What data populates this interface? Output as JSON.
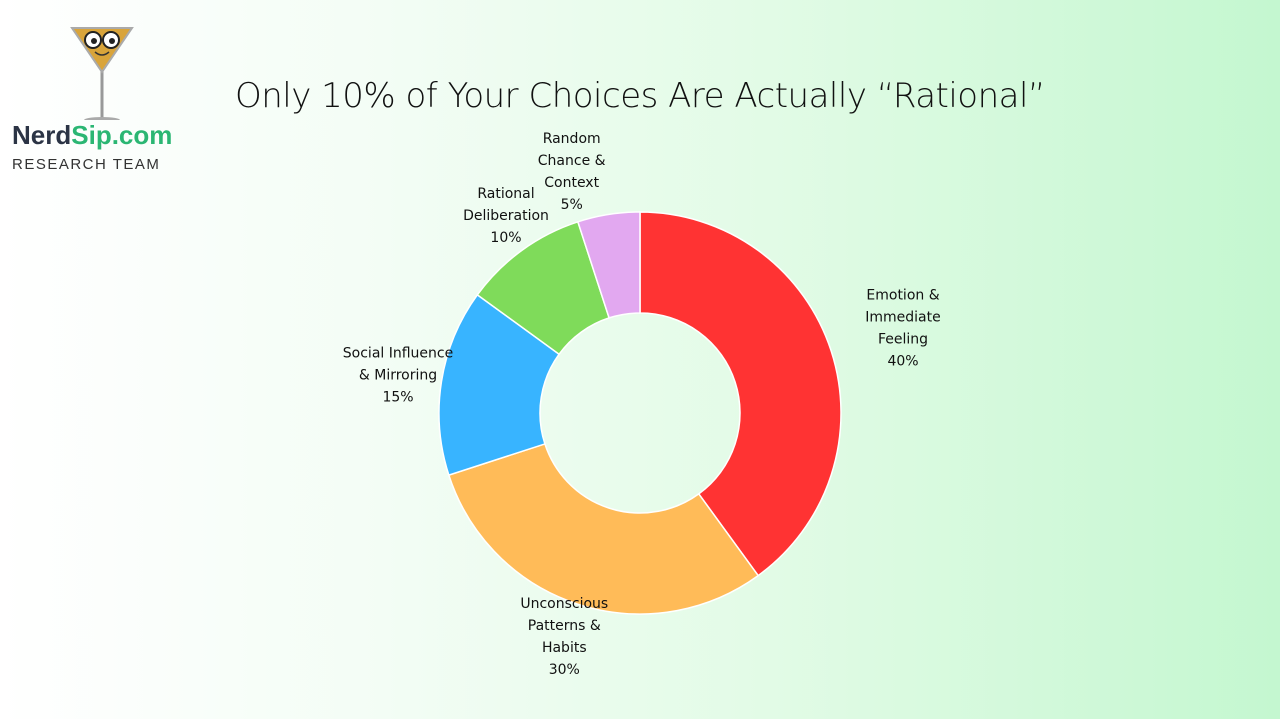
{
  "brand": {
    "name_part1": "Nerd",
    "name_part2": "Sip.com",
    "subtitle": "RESEARCH TEAM"
  },
  "chart_data": {
    "type": "pie",
    "variant": "donut",
    "title": "Only 10% of Your Choices Are Actually “Rational”",
    "slices": [
      {
        "label": [
          "Emotion &",
          "Immediate",
          "Feeling"
        ],
        "value": 40,
        "value_label": "40%",
        "color": "#ff3333"
      },
      {
        "label": [
          "Unconscious",
          "Patterns &",
          "Habits"
        ],
        "value": 30,
        "value_label": "30%",
        "color": "#ffbb58"
      },
      {
        "label": [
          "Social Influence",
          "& Mirroring"
        ],
        "value": 15,
        "value_label": "15%",
        "color": "#38b4ff"
      },
      {
        "label": [
          "Rational",
          "Deliberation"
        ],
        "value": 10,
        "value_label": "10%",
        "color": "#7fdb5a"
      },
      {
        "label": [
          "Random",
          "Chance &",
          "Context"
        ],
        "value": 5,
        "value_label": "5%",
        "color": "#e2a8f0"
      }
    ]
  }
}
